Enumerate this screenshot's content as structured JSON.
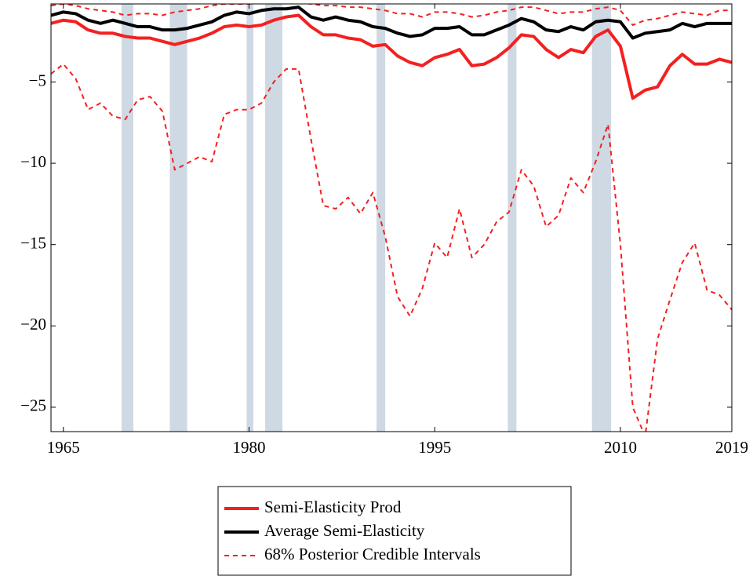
{
  "chart_data": {
    "type": "line",
    "x": [
      1964,
      1965,
      1966,
      1967,
      1968,
      1969,
      1970,
      1971,
      1972,
      1973,
      1974,
      1975,
      1976,
      1977,
      1978,
      1979,
      1980,
      1981,
      1982,
      1983,
      1984,
      1985,
      1986,
      1987,
      1988,
      1989,
      1990,
      1991,
      1992,
      1993,
      1994,
      1995,
      1996,
      1997,
      1998,
      1999,
      2000,
      2001,
      2002,
      2003,
      2004,
      2005,
      2006,
      2007,
      2008,
      2009,
      2010,
      2011,
      2012,
      2013,
      2014,
      2015,
      2016,
      2017,
      2018,
      2019
    ],
    "xlim": [
      1964,
      2019
    ],
    "xticks": [
      1965,
      1980,
      1995,
      2010,
      2019
    ],
    "ylim": [
      -26.5,
      -0.2
    ],
    "yticks": [
      {
        "value": -25,
        "label": "−25"
      },
      {
        "value": -20,
        "label": "−20"
      },
      {
        "value": -15,
        "label": "−15"
      },
      {
        "value": -10,
        "label": "−10"
      },
      {
        "value": -5,
        "label": "−5"
      }
    ],
    "shaded_regions": [
      [
        1969.7,
        1970.65
      ],
      [
        1973.6,
        1975.0
      ],
      [
        1979.8,
        1980.35
      ],
      [
        1981.3,
        1982.7
      ],
      [
        1990.3,
        1991.0
      ],
      [
        2000.9,
        2001.6
      ],
      [
        2007.7,
        2009.25
      ]
    ],
    "shade_color": "#cfd9e4",
    "series": [
      {
        "name": "Semi-Elasticity Prod",
        "color": "#f42020",
        "width": 4,
        "values": [
          -1.4,
          -1.2,
          -1.3,
          -1.8,
          -2.0,
          -2.0,
          -2.2,
          -2.3,
          -2.3,
          -2.5,
          -2.7,
          -2.5,
          -2.3,
          -2.0,
          -1.6,
          -1.5,
          -1.6,
          -1.5,
          -1.2,
          -1.0,
          -0.9,
          -1.6,
          -2.1,
          -2.1,
          -2.3,
          -2.4,
          -2.8,
          -2.7,
          -3.4,
          -3.8,
          -4.0,
          -3.5,
          -3.3,
          -3.0,
          -4.0,
          -3.9,
          -3.5,
          -2.9,
          -2.1,
          -2.2,
          -3.0,
          -3.5,
          -3.0,
          -3.2,
          -2.2,
          -1.8,
          -2.8,
          -6.0,
          -5.5,
          -5.3,
          -4.0,
          -3.3,
          -3.9,
          -3.9,
          -3.6,
          -3.8
        ]
      },
      {
        "name": "Average Semi-Elasticity",
        "color": "#000000",
        "width": 4,
        "values": [
          -0.9,
          -0.7,
          -0.8,
          -1.2,
          -1.4,
          -1.2,
          -1.4,
          -1.6,
          -1.6,
          -1.8,
          -1.8,
          -1.7,
          -1.5,
          -1.3,
          -0.9,
          -0.7,
          -0.8,
          -0.6,
          -0.5,
          -0.5,
          -0.4,
          -1.0,
          -1.2,
          -1.0,
          -1.2,
          -1.3,
          -1.6,
          -1.7,
          -2.0,
          -2.2,
          -2.1,
          -1.7,
          -1.7,
          -1.6,
          -2.1,
          -2.1,
          -1.8,
          -1.5,
          -1.1,
          -1.3,
          -1.8,
          -1.9,
          -1.6,
          -1.8,
          -1.3,
          -1.2,
          -1.3,
          -2.3,
          -2.0,
          -1.9,
          -1.8,
          -1.4,
          -1.6,
          -1.4,
          -1.4,
          -1.4
        ]
      },
      {
        "name": "68% Posterior Credible Intervals",
        "color": "#f42020",
        "width": 2,
        "dashed": true,
        "upper": [
          -0.3,
          -0.2,
          -0.3,
          -0.5,
          -0.6,
          -0.7,
          -0.9,
          -0.8,
          -0.8,
          -0.9,
          -0.7,
          -0.6,
          -0.5,
          -0.3,
          -0.2,
          -0.2,
          -0.2,
          -0.1,
          -0.1,
          -0.1,
          -0.1,
          -0.2,
          -0.3,
          -0.3,
          -0.4,
          -0.4,
          -0.5,
          -0.6,
          -0.8,
          -0.8,
          -1.0,
          -0.7,
          -0.7,
          -0.8,
          -1.0,
          -0.9,
          -0.7,
          -0.6,
          -0.4,
          -0.4,
          -0.6,
          -0.8,
          -0.7,
          -0.7,
          -0.5,
          -0.4,
          -0.6,
          -1.5,
          -1.2,
          -1.1,
          -0.9,
          -0.7,
          -0.8,
          -0.9,
          -0.6,
          -0.6
        ],
        "lower": [
          -4.5,
          -3.9,
          -4.8,
          -6.7,
          -6.3,
          -7.1,
          -7.3,
          -6.1,
          -5.9,
          -6.8,
          -10.4,
          -10.0,
          -9.6,
          -9.9,
          -7.0,
          -6.7,
          -6.7,
          -6.3,
          -5.0,
          -4.2,
          -4.2,
          -8.5,
          -12.6,
          -12.8,
          -12.1,
          -13.1,
          -11.8,
          -14.5,
          -18.2,
          -19.4,
          -17.7,
          -14.9,
          -15.8,
          -12.8,
          -15.8,
          -15.0,
          -13.6,
          -13.0,
          -10.4,
          -11.4,
          -13.9,
          -13.2,
          -10.9,
          -11.8,
          -9.9,
          -7.6,
          -15.0,
          -25.0,
          -26.8,
          -20.8,
          -18.4,
          -16.1,
          -14.9,
          -17.8,
          -18.1,
          -19.0
        ]
      }
    ]
  }
}
